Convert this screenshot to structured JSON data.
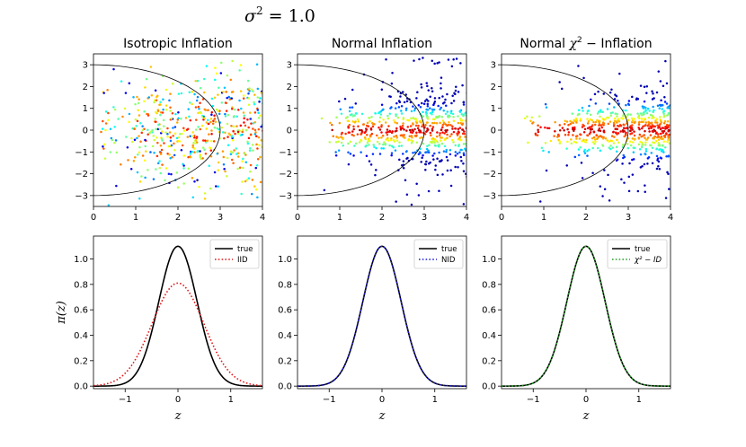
{
  "figure": {
    "suptitle_symbol": "σ",
    "suptitle_exponent": "2",
    "suptitle_rest": " = 1.0"
  },
  "chart_data": [
    {
      "type": "scatter",
      "title": "Isotropic Inflation",
      "xlim": [
        0,
        4
      ],
      "ylim": [
        -3.5,
        3.5
      ],
      "xticks": [
        0,
        1,
        2,
        3,
        4
      ],
      "yticks": [
        -3,
        -2,
        -1,
        0,
        1,
        2,
        3
      ],
      "reference_curve": "semi-ellipse r=3",
      "distribution": "isotropic",
      "colormap": "jet (radial position)"
    },
    {
      "type": "scatter",
      "title": "Normal Inflation",
      "xlim": [
        0,
        4
      ],
      "ylim": [
        -3.5,
        3.5
      ],
      "xticks": [
        0,
        1,
        2,
        3,
        4
      ],
      "yticks": [
        -3,
        -2,
        -1,
        0,
        1,
        2,
        3
      ],
      "reference_curve": "semi-ellipse r=3",
      "distribution": "normal",
      "colormap": "jet (|y| position)"
    },
    {
      "type": "scatter",
      "title_prefix": "Normal ",
      "title_symbol": "χ",
      "title_exponent": "2",
      "title_suffix": " − Inflation",
      "xlim": [
        0,
        4
      ],
      "ylim": [
        -3.5,
        3.5
      ],
      "xticks": [
        0,
        1,
        2,
        3,
        4
      ],
      "yticks": [
        -3,
        -2,
        -1,
        0,
        1,
        2,
        3
      ],
      "reference_curve": "semi-ellipse r=3",
      "distribution": "chi2",
      "colormap": "jet (|y| position)"
    },
    {
      "type": "line",
      "xlabel": "z",
      "ylabel": "π(z)",
      "xlim": [
        -1.6,
        1.6
      ],
      "ylim": [
        -0.02,
        1.18
      ],
      "xticks": [
        -1,
        0,
        1
      ],
      "yticks": [
        0.0,
        0.2,
        0.4,
        0.6,
        0.8,
        1.0
      ],
      "legend_position": "top-right",
      "series": [
        {
          "name": "true",
          "color": "#000000",
          "style": "solid",
          "peak": 1.1,
          "sigma": 0.362
        },
        {
          "name": "IID",
          "color": "#e31a1c",
          "style": "dotted",
          "peak": 0.81,
          "sigma": 0.49
        }
      ]
    },
    {
      "type": "line",
      "xlabel": "z",
      "xlim": [
        -1.6,
        1.6
      ],
      "ylim": [
        -0.02,
        1.18
      ],
      "xticks": [
        -1,
        0,
        1
      ],
      "yticks": [
        0.0,
        0.2,
        0.4,
        0.6,
        0.8,
        1.0
      ],
      "legend_position": "top-right",
      "series": [
        {
          "name": "true",
          "color": "#000000",
          "style": "solid",
          "peak": 1.1,
          "sigma": 0.362
        },
        {
          "name": "NID",
          "color": "#1f1fd6",
          "style": "dotted",
          "peak": 1.1,
          "sigma": 0.362
        }
      ]
    },
    {
      "type": "line",
      "xlabel": "z",
      "xlim": [
        -1.6,
        1.6
      ],
      "ylim": [
        -0.02,
        1.18
      ],
      "xticks": [
        -1,
        0,
        1
      ],
      "yticks": [
        0.0,
        0.2,
        0.4,
        0.6,
        0.8,
        1.0
      ],
      "legend_position": "top-right",
      "series": [
        {
          "name": "true",
          "color": "#000000",
          "style": "solid",
          "peak": 1.1,
          "sigma": 0.362
        },
        {
          "name": "χ² − ID",
          "color": "#2ca02c",
          "style": "dotted",
          "peak": 1.1,
          "sigma": 0.362
        }
      ]
    }
  ]
}
